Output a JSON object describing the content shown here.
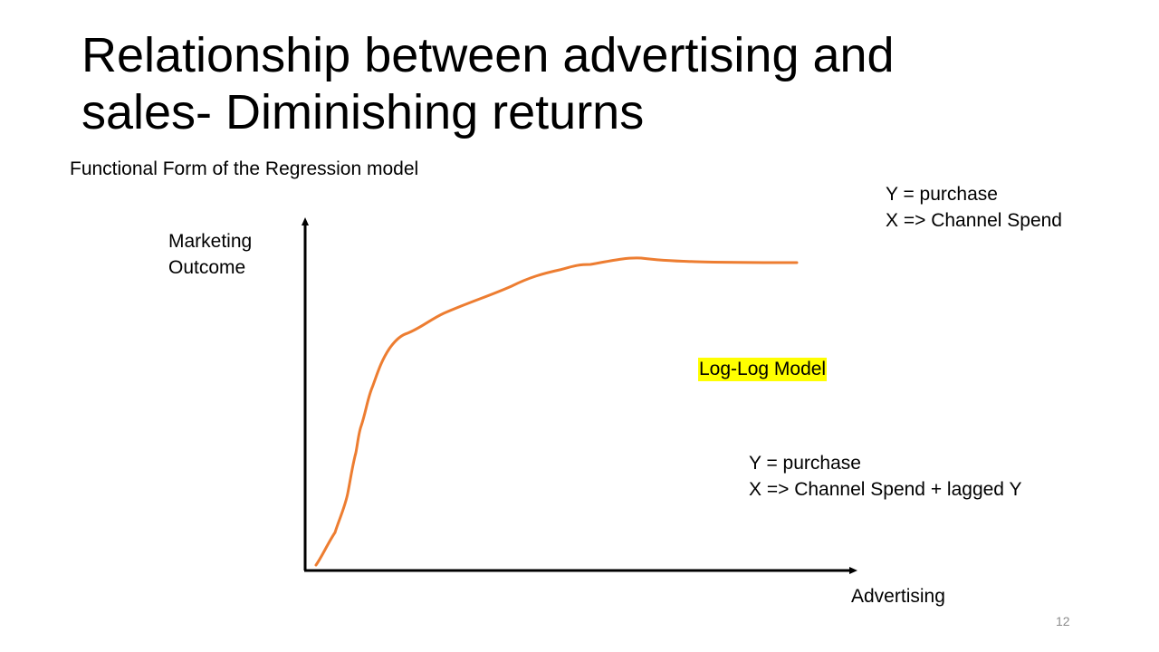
{
  "slide": {
    "title_line1": "Relationship between advertising and",
    "title_line2": "sales- Diminishing returns",
    "subtitle": "Functional Form of the Regression model",
    "page_number": "12"
  },
  "equations": {
    "top": {
      "line1": "Y = purchase",
      "line2": "X => Channel Spend"
    },
    "bottom": {
      "line1": "Y = purchase",
      "line2": "X => Channel Spend + lagged Y"
    }
  },
  "diagram": {
    "y_axis_label_line1": "Marketing",
    "y_axis_label_line2": "Outcome",
    "x_axis_label": "Advertising",
    "model_label": "Log-Log Model",
    "highlight_color": "#ffff00",
    "curve_color": "#ed7d31",
    "axis_color": "#000000"
  }
}
